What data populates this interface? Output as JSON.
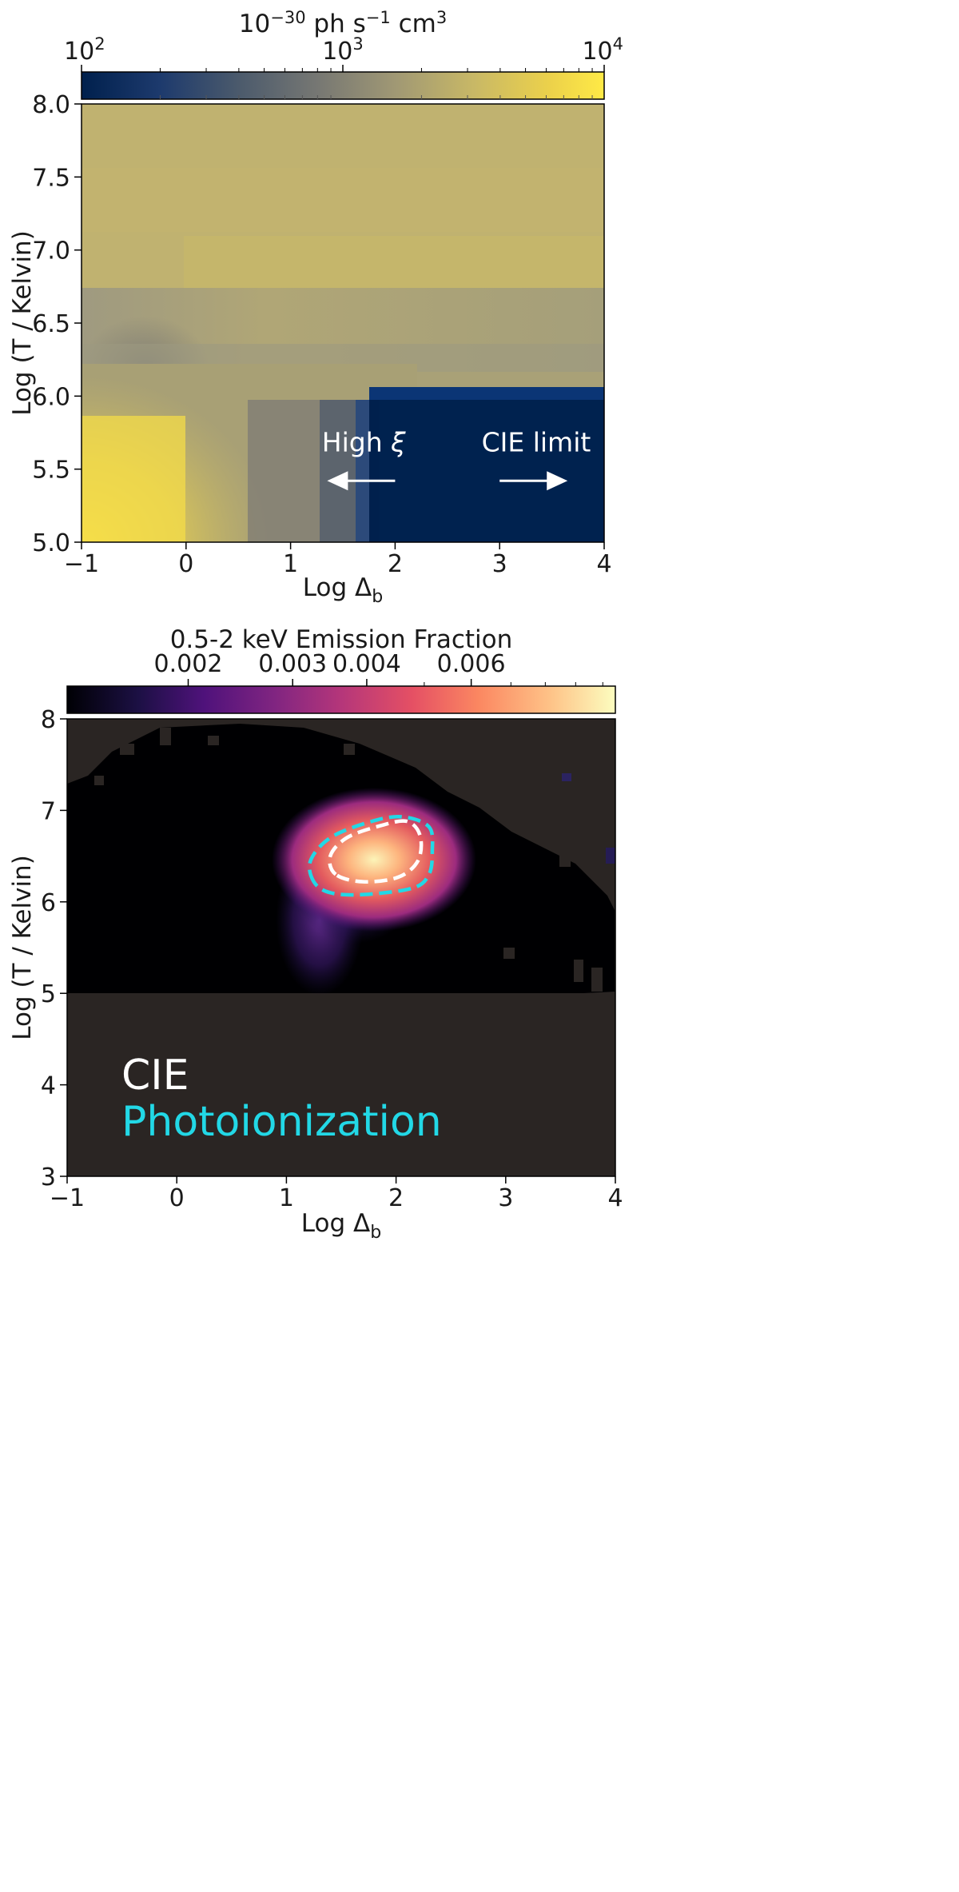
{
  "chart_data": [
    {
      "type": "heatmap",
      "colormap": "cividis",
      "colorbar": {
        "position": "top",
        "label_html": "10<tspan dy=\"-11\" font-size=\"21\">−30</tspan><tspan dy=\"11\"> ph s</tspan><tspan dy=\"-11\" font-size=\"21\">−1</tspan><tspan dy=\"11\"> cm</tspan><tspan dy=\"-11\" font-size=\"21\">3</tspan>",
        "scale": "log",
        "range": [
          100,
          10000
        ],
        "ticks": [
          {
            "value": 100,
            "base": "10",
            "exp": "2"
          },
          {
            "value": 1000,
            "base": "10",
            "exp": "3"
          },
          {
            "value": 10000,
            "base": "10",
            "exp": "4"
          }
        ]
      },
      "xlabel_html": "Log Δ<tspan dy=\"8\" font-size=\"22\">b</tspan>",
      "ylabel": "Log (T / Kelvin)",
      "xlim": [
        -1,
        4
      ],
      "ylim": [
        5,
        8
      ],
      "xticks": [
        -1,
        0,
        1,
        2,
        3,
        4
      ],
      "xtick_labels": [
        "−1",
        "0",
        "1",
        "2",
        "3",
        "4"
      ],
      "yticks": [
        5.0,
        5.5,
        6.0,
        6.5,
        7.0,
        7.5,
        8.0
      ],
      "ytick_labels": [
        "5.0",
        "5.5",
        "6.0",
        "6.5",
        "7.0",
        "7.5",
        "8.0"
      ],
      "grid": false,
      "annotations": [
        {
          "text_html": "High <tspan font-style=\"italic\">ξ</tspan>",
          "x": 1.7,
          "y": 5.62,
          "arrow": "left",
          "arrow_from": 2.0,
          "arrow_to": 1.35,
          "arrow_y": 5.42
        },
        {
          "text": "CIE limit",
          "x": 3.35,
          "y": 5.62,
          "arrow": "right",
          "arrow_from": 3.0,
          "arrow_to": 3.65,
          "arrow_y": 5.42
        }
      ]
    },
    {
      "type": "heatmap",
      "colormap": "magma",
      "background_color": "#2a2523",
      "colorbar": {
        "position": "top",
        "label": "0.5-2 keV Emission Fraction",
        "scale": "log",
        "range": [
          0.00125,
          0.0105
        ],
        "ticks": [
          {
            "value": 0.002,
            "label": "0.002"
          },
          {
            "value": 0.003,
            "label": "0.003"
          },
          {
            "value": 0.004,
            "label": "0.004"
          },
          {
            "value": 0.006,
            "label": "0.006"
          }
        ]
      },
      "xlabel_html": "Log Δ<tspan dy=\"8\" font-size=\"22\">b</tspan>",
      "ylabel": "Log (T / Kelvin)",
      "xlim": [
        -1,
        4
      ],
      "ylim": [
        3,
        8
      ],
      "xticks": [
        -1,
        0,
        1,
        2,
        3,
        4
      ],
      "xtick_labels": [
        "−1",
        "0",
        "1",
        "2",
        "3",
        "4"
      ],
      "yticks": [
        3,
        4,
        5,
        6,
        7,
        8
      ],
      "ytick_labels": [
        "3",
        "4",
        "5",
        "6",
        "7",
        "8"
      ],
      "grid": false,
      "contours": [
        {
          "series": "Photoionization",
          "color": "#22d8e6",
          "style": "dashed",
          "points": [
            [
              1.25,
              6.22
            ],
            [
              1.22,
              6.45
            ],
            [
              1.4,
              6.7
            ],
            [
              1.75,
              6.87
            ],
            [
              2.05,
              6.93
            ],
            [
              2.3,
              6.82
            ],
            [
              2.33,
              6.55
            ],
            [
              2.3,
              6.3
            ],
            [
              2.15,
              6.15
            ],
            [
              1.7,
              6.08
            ],
            [
              1.4,
              6.1
            ]
          ]
        },
        {
          "series": "CIE",
          "color": "#ffffff",
          "style": "dashed",
          "points": [
            [
              1.45,
              6.3
            ],
            [
              1.4,
              6.5
            ],
            [
              1.55,
              6.7
            ],
            [
              1.85,
              6.83
            ],
            [
              2.1,
              6.88
            ],
            [
              2.22,
              6.72
            ],
            [
              2.2,
              6.45
            ],
            [
              2.02,
              6.27
            ],
            [
              1.7,
              6.22
            ]
          ]
        }
      ],
      "legend": {
        "placement": "bottom-left",
        "entries": [
          {
            "label": "CIE",
            "color": "#ffffff"
          },
          {
            "label": "Photoionization",
            "color": "#22d8e6"
          }
        ]
      }
    }
  ]
}
